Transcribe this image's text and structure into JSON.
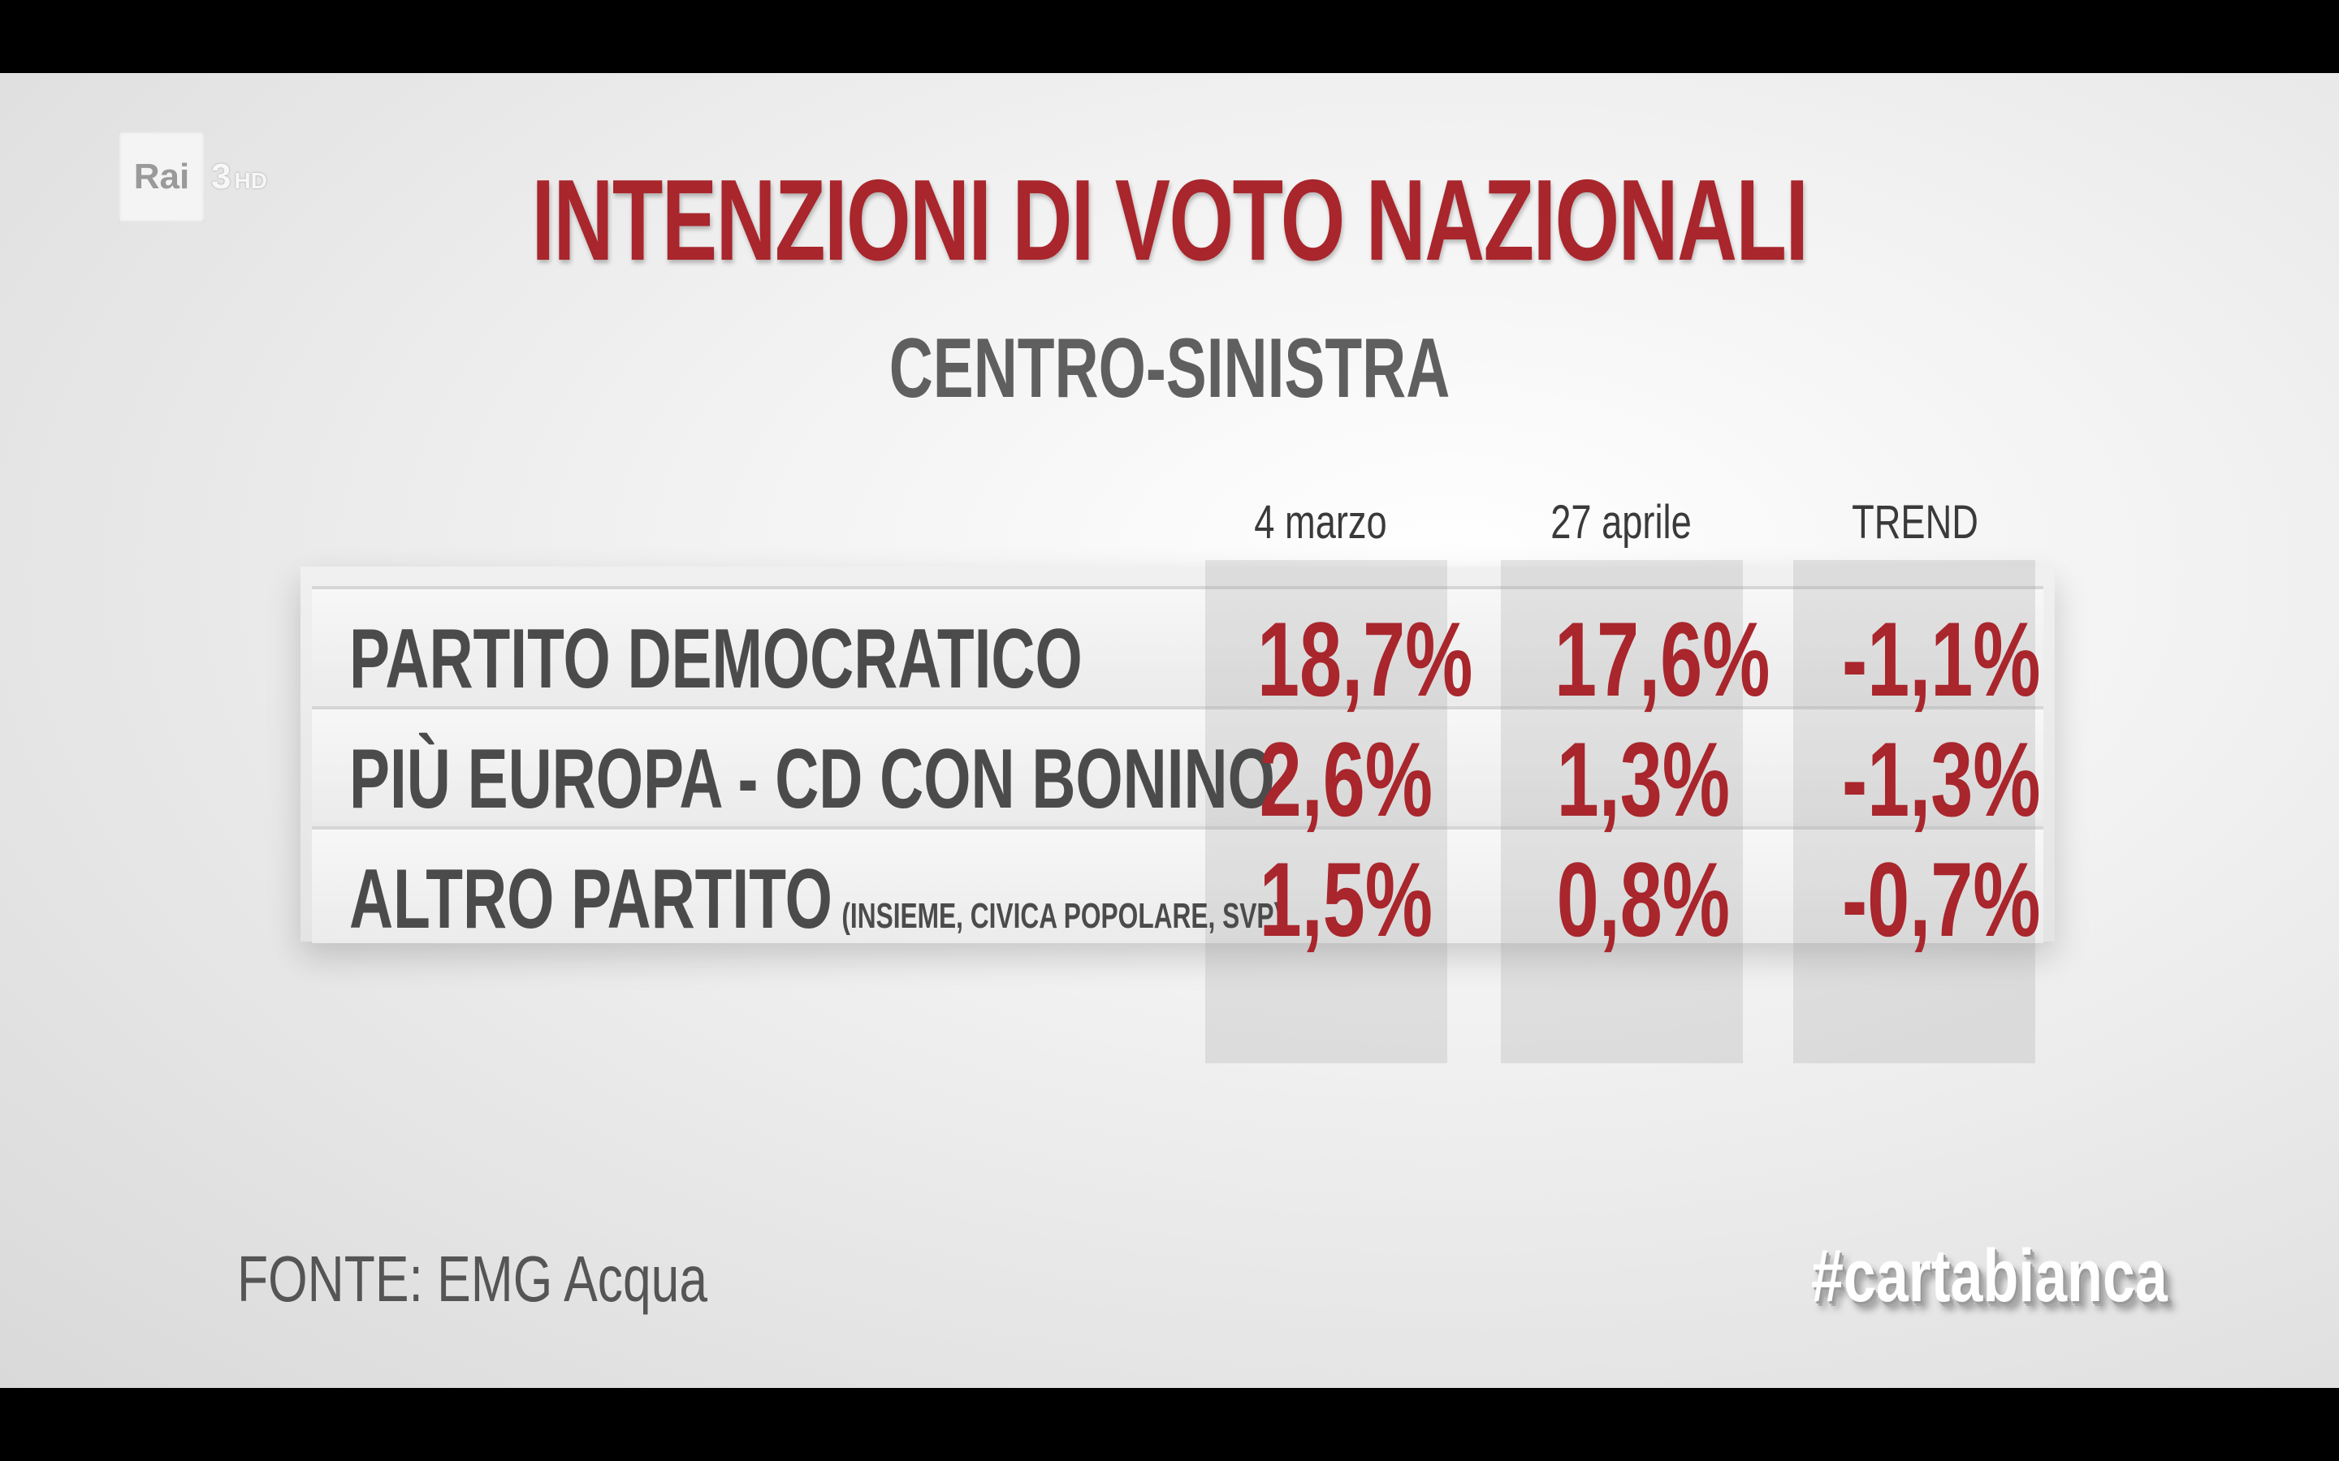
{
  "channel": {
    "name": "Rai",
    "number": "3",
    "suffix": "HD"
  },
  "chart_data": {
    "type": "table",
    "title": "INTENZIONI DI VOTO NAZIONALI",
    "subtitle": "CENTRO-SINISTRA",
    "columns": [
      "4 marzo",
      "27 aprile",
      "TREND"
    ],
    "rows": [
      {
        "label": "PARTITO DEMOCRATICO",
        "note": "",
        "values": [
          "18,7%",
          "17,6%",
          "-1,1%"
        ]
      },
      {
        "label": "PIÙ EUROPA - CD CON BONINO",
        "note": "",
        "values": [
          "2,6%",
          "1,3%",
          "-1,3%"
        ]
      },
      {
        "label": "ALTRO PARTITO",
        "note": "(INSIEME, CIVICA POPOLARE, SVP)",
        "values": [
          "1,5%",
          "0,8%",
          "-0,7%"
        ]
      }
    ],
    "colors": {
      "values": "#a8262c",
      "title": "#a8262c",
      "labels": "#4b4b4b"
    }
  },
  "footer": {
    "source": "FONTE: EMG Acqua",
    "hashtag": "#cartabianca"
  }
}
